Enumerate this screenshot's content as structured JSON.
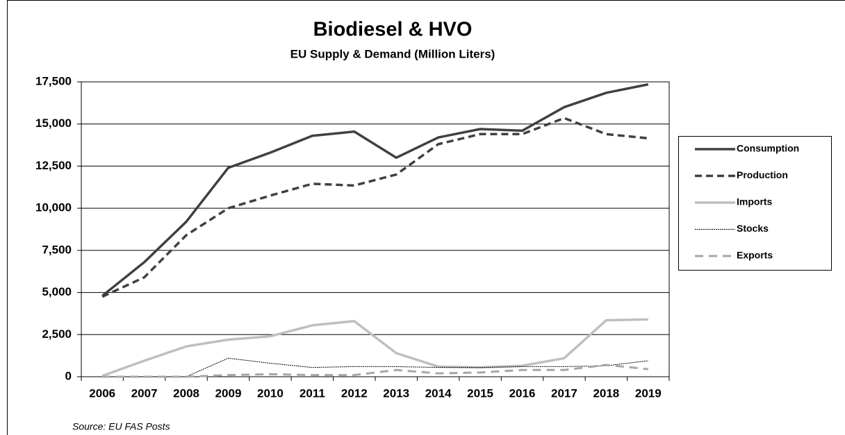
{
  "chart_data": {
    "type": "line",
    "title": "Biodiesel & HVO",
    "subtitle": "EU Supply & Demand (Million Liters)",
    "source": "Source: EU FAS Posts",
    "categories": [
      "2006",
      "2007",
      "2008",
      "2009",
      "2010",
      "2011",
      "2012",
      "2013",
      "2014",
      "2015",
      "2016",
      "2017",
      "2018",
      "2019"
    ],
    "series": [
      {
        "name": "Consumption",
        "color": "#404040",
        "style": "solid",
        "width": 3.5,
        "values": [
          4800,
          6800,
          9200,
          12400,
          13300,
          14300,
          14550,
          13000,
          14200,
          14700,
          14600,
          16000,
          16850,
          17350
        ]
      },
      {
        "name": "Production",
        "color": "#404040",
        "style": "dashed",
        "width": 3.5,
        "values": [
          4750,
          5900,
          8400,
          10000,
          10750,
          11450,
          11350,
          12000,
          13800,
          14400,
          14400,
          15350,
          14400,
          14150
        ]
      },
      {
        "name": "Imports",
        "color": "#bfbfbf",
        "style": "solid",
        "width": 3.5,
        "values": [
          50,
          950,
          1800,
          2200,
          2400,
          3050,
          3300,
          1400,
          600,
          550,
          650,
          1100,
          3350,
          3400
        ]
      },
      {
        "name": "Stocks",
        "color": "#000000",
        "style": "dotted",
        "width": 1,
        "values": [
          0,
          0,
          0,
          1100,
          800,
          550,
          600,
          600,
          550,
          550,
          600,
          600,
          650,
          950
        ]
      },
      {
        "name": "Exports",
        "color": "#a6a6a6",
        "style": "dashed",
        "width": 3,
        "values": [
          0,
          0,
          0,
          100,
          150,
          100,
          100,
          400,
          200,
          250,
          400,
          400,
          700,
          450
        ]
      }
    ],
    "ylim": [
      0,
      17500
    ],
    "yticks": [
      0,
      {
        "value": 2500,
        "label": "2,500"
      },
      {
        "value": 5000,
        "label": "5,000"
      },
      {
        "value": 7500,
        "label": "7,500"
      },
      {
        "value": 10000,
        "label": "10,000"
      },
      {
        "value": 12500,
        "label": "12,500"
      },
      {
        "value": 15000,
        "label": "15,000"
      },
      {
        "value": 17500,
        "label": "17,500"
      }
    ],
    "grid": true,
    "legend": "right"
  }
}
